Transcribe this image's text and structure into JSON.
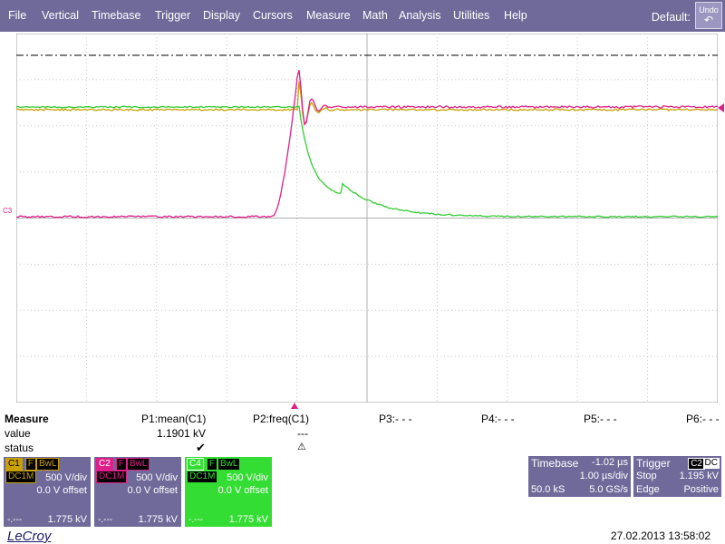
{
  "menu": {
    "items": [
      "File",
      "Vertical",
      "Timebase",
      "Trigger",
      "Display",
      "Cursors",
      "Measure",
      "Math",
      "Analysis",
      "Utilities",
      "Help"
    ],
    "default_label": "Default:",
    "undo_label": "Undo"
  },
  "trace": {
    "ground_marker": "C3",
    "colors": {
      "c1": "#c8a000",
      "c2": "#e0208a",
      "c4": "#33cc33"
    }
  },
  "measure": {
    "title": "Measure",
    "row_labels": [
      "value",
      "status"
    ],
    "params": [
      {
        "name": "P1:mean(C1)",
        "value": "1.1901 kV",
        "status": "✔"
      },
      {
        "name": "P2:freq(C1)",
        "value": "---",
        "status": "⚠"
      },
      {
        "name": "P3:- - -",
        "value": "",
        "status": ""
      },
      {
        "name": "P4:- - -",
        "value": "",
        "status": ""
      },
      {
        "name": "P5:- - -",
        "value": "",
        "status": ""
      },
      {
        "name": "P6:- - -",
        "value": "",
        "status": ""
      }
    ]
  },
  "channels": [
    {
      "id": "C1",
      "tags": [
        "F",
        "BwL",
        "DC1M"
      ],
      "vdiv": "500 V/div",
      "offset": "0.0 V offset",
      "bl": "-.---",
      "level": "1.775 kV"
    },
    {
      "id": "C2",
      "tags": [
        "F",
        "BwL",
        "DC1M"
      ],
      "vdiv": "500 V/div",
      "offset": "0.0 V offset",
      "bl": "-.---",
      "level": "1.775 kV"
    },
    {
      "id": "C4",
      "tags": [
        "F",
        "BwL",
        "DC1M"
      ],
      "vdiv": "500 V/div",
      "offset": "0.0 V offset",
      "bl": "-.---",
      "level": "1.775 kV"
    }
  ],
  "timebase": {
    "title": "Timebase",
    "delay": "-1.02 µs",
    "tdiv": "1.00 µs/div",
    "samples": "50.0 kS",
    "rate": "5.0 GS/s"
  },
  "trigger": {
    "title": "Trigger",
    "channel": "C2",
    "coupling": "DC",
    "mode": "Stop",
    "level": "1.195 kV",
    "type": "Edge",
    "slope": "Positive"
  },
  "footer": {
    "brand": "LeCroy",
    "datetime": "27.02.2013 13:58:02"
  }
}
